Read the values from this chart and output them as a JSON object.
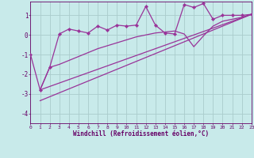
{
  "xlabel": "Windchill (Refroidissement éolien,°C)",
  "bg_color": "#c8eaea",
  "grid_color": "#aacccc",
  "line_color": "#993399",
  "xlim": [
    0,
    23
  ],
  "ylim": [
    -4.5,
    1.7
  ],
  "yticks": [
    -4,
    -3,
    -2,
    -1,
    0,
    1
  ],
  "xticks": [
    0,
    1,
    2,
    3,
    4,
    5,
    6,
    7,
    8,
    9,
    10,
    11,
    12,
    13,
    14,
    15,
    16,
    17,
    18,
    19,
    20,
    21,
    22,
    23
  ],
  "series": [
    {
      "x": [
        0,
        1,
        2,
        3,
        4,
        5,
        6,
        7,
        8,
        9,
        10,
        11,
        12,
        13,
        14,
        15,
        16,
        17,
        18,
        19,
        20,
        21,
        22,
        23
      ],
      "y": [
        -1.0,
        -2.8,
        -1.65,
        0.05,
        0.3,
        0.2,
        0.1,
        0.45,
        0.25,
        0.5,
        0.45,
        0.5,
        1.45,
        0.5,
        0.1,
        0.05,
        1.55,
        1.4,
        1.6,
        0.8,
        1.0,
        1.0,
        1.0,
        1.05
      ],
      "marker": "D",
      "markersize": 2.2,
      "linewidth": 0.9,
      "has_markers": true
    },
    {
      "x": [
        1,
        2,
        3,
        4,
        5,
        6,
        7,
        8,
        9,
        10,
        11,
        12,
        13,
        14,
        15,
        16,
        17,
        18,
        19,
        20,
        21,
        22,
        23
      ],
      "y": [
        -2.8,
        -1.65,
        -1.5,
        -1.3,
        -1.1,
        -0.9,
        -0.7,
        -0.55,
        -0.4,
        -0.25,
        -0.1,
        0.0,
        0.1,
        0.15,
        0.2,
        0.05,
        -0.6,
        -0.05,
        0.45,
        0.7,
        0.8,
        0.9,
        1.05
      ],
      "marker": null,
      "markersize": 0,
      "linewidth": 0.9,
      "has_markers": false
    },
    {
      "x": [
        1,
        23
      ],
      "y": [
        -2.8,
        1.05
      ],
      "marker": null,
      "markersize": 0,
      "linewidth": 0.9,
      "has_markers": false
    },
    {
      "x": [
        1,
        23
      ],
      "y": [
        -3.35,
        1.05
      ],
      "marker": null,
      "markersize": 0,
      "linewidth": 0.9,
      "has_markers": false
    }
  ]
}
